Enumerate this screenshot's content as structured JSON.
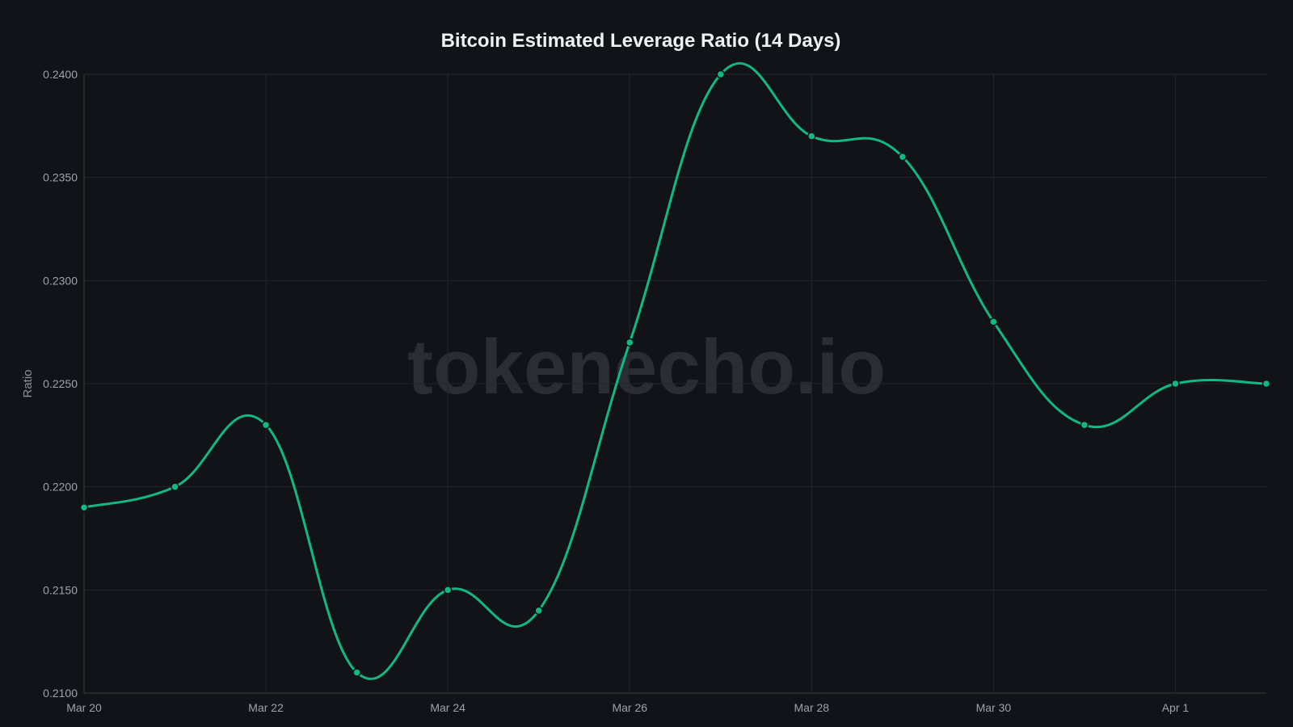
{
  "chart_data": {
    "type": "line",
    "title": "Bitcoin Estimated Leverage Ratio (14 Days)",
    "xlabel": "",
    "ylabel": "Ratio",
    "watermark": "tokenecho.io",
    "x": [
      "Mar 20",
      "Mar 21",
      "Mar 22",
      "Mar 23",
      "Mar 24",
      "Mar 25",
      "Mar 26",
      "Mar 27",
      "Mar 28",
      "Mar 29",
      "Mar 30",
      "Mar 31",
      "Apr 1",
      "Apr 2"
    ],
    "x_tick_labels": [
      "Mar 20",
      "Mar 22",
      "Mar 24",
      "Mar 26",
      "Mar 28",
      "Mar 30",
      "Apr 1"
    ],
    "series": [
      {
        "values": [
          0.219,
          0.22,
          0.223,
          0.211,
          0.215,
          0.214,
          0.227,
          0.24,
          0.237,
          0.236,
          0.228,
          0.223,
          0.225,
          0.225
        ],
        "color": "#10b981"
      }
    ],
    "ylim": [
      0.21,
      0.24
    ],
    "y_ticks": [
      "0.2100",
      "0.2150",
      "0.2200",
      "0.2250",
      "0.2300",
      "0.2350",
      "0.2400"
    ],
    "grid": true,
    "legend": "none"
  }
}
